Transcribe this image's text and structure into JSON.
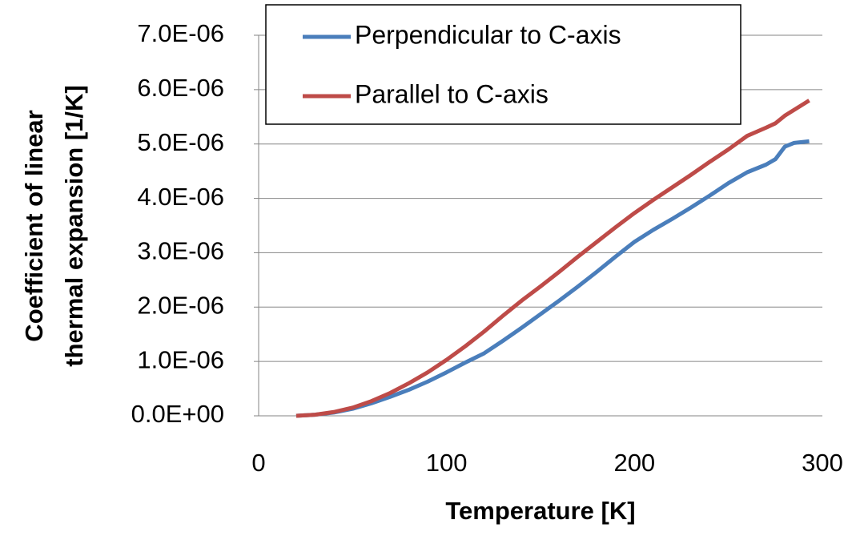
{
  "chart_data": {
    "type": "line",
    "xlabel": "Temperature [K]",
    "ylabel": [
      "Coefficient of linear",
      "thermal expansion [1/K]"
    ],
    "xlim": [
      0,
      300
    ],
    "xticks": [
      0,
      100,
      200,
      300
    ],
    "ylim": [
      0,
      7e-06
    ],
    "yticks": [
      {
        "value": 0,
        "label": "0.0E+00"
      },
      {
        "value": 1e-06,
        "label": "1.0E-06"
      },
      {
        "value": 2e-06,
        "label": "2.0E-06"
      },
      {
        "value": 3e-06,
        "label": "3.0E-06"
      },
      {
        "value": 4e-06,
        "label": "4.0E-06"
      },
      {
        "value": 5e-06,
        "label": "5.0E-06"
      },
      {
        "value": 6e-06,
        "label": "6.0E-06"
      },
      {
        "value": 7e-06,
        "label": "7.0E-06"
      }
    ],
    "grid": true,
    "legend": "top",
    "series": [
      {
        "name": "Perpendicular to C-axis",
        "color": "#4a7ebb",
        "x": [
          20,
          30,
          40,
          50,
          60,
          70,
          80,
          90,
          100,
          110,
          120,
          130,
          140,
          150,
          160,
          170,
          180,
          190,
          200,
          210,
          220,
          230,
          240,
          250,
          260,
          270,
          275,
          280,
          285,
          293
        ],
        "values": [
          0,
          2e-08,
          6e-08,
          1.3e-07,
          2.3e-07,
          3.5e-07,
          4.8e-07,
          6.3e-07,
          8e-07,
          9.8e-07,
          1.15e-06,
          1.38e-06,
          1.62e-06,
          1.87e-06,
          2.12e-06,
          2.38e-06,
          2.65e-06,
          2.93e-06,
          3.2e-06,
          3.42e-06,
          3.62e-06,
          3.83e-06,
          4.05e-06,
          4.28e-06,
          4.48e-06,
          4.62e-06,
          4.72e-06,
          4.95e-06,
          5.02e-06,
          5.05e-06
        ]
      },
      {
        "name": "Parallel to C-axis",
        "color": "#be4b48",
        "x": [
          20,
          30,
          40,
          50,
          60,
          70,
          80,
          90,
          100,
          110,
          120,
          130,
          140,
          150,
          160,
          170,
          180,
          190,
          200,
          210,
          220,
          230,
          240,
          250,
          260,
          270,
          275,
          280,
          293
        ],
        "values": [
          0,
          2e-08,
          7e-08,
          1.5e-07,
          2.7e-07,
          4.2e-07,
          6e-07,
          8e-07,
          1.03e-06,
          1.28e-06,
          1.55e-06,
          1.84e-06,
          2.12e-06,
          2.38e-06,
          2.65e-06,
          2.93e-06,
          3.2e-06,
          3.47e-06,
          3.73e-06,
          3.97e-06,
          4.2e-06,
          4.43e-06,
          4.67e-06,
          4.9e-06,
          5.15e-06,
          5.3e-06,
          5.38e-06,
          5.52e-06,
          5.8e-06
        ]
      }
    ]
  }
}
